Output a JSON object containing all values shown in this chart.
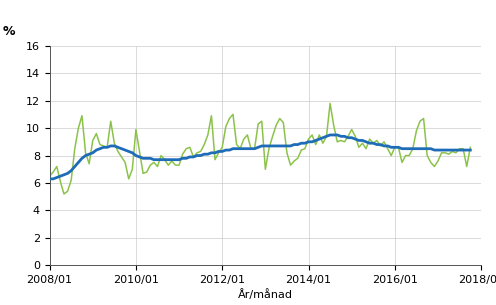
{
  "ylabel_text": "%",
  "xlabel": "År/månad",
  "ylim": [
    0,
    16
  ],
  "yticks": [
    0,
    2,
    4,
    6,
    8,
    10,
    12,
    14,
    16
  ],
  "xtick_labels": [
    "2008/01",
    "2010/01",
    "2012/01",
    "2014/01",
    "2016/01",
    "2018/01"
  ],
  "raw_color": "#8bc34a",
  "trend_color": "#1e6bb8",
  "raw_linewidth": 1.1,
  "trend_linewidth": 2.0,
  "raw_data": [
    6.5,
    6.8,
    7.2,
    6.1,
    5.2,
    5.4,
    6.2,
    8.5,
    10.0,
    10.9,
    8.2,
    7.4,
    9.1,
    9.6,
    8.8,
    8.7,
    8.6,
    10.5,
    8.9,
    8.3,
    7.9,
    7.5,
    6.3,
    7.0,
    9.9,
    8.3,
    6.7,
    6.8,
    7.3,
    7.5,
    7.2,
    8.0,
    7.7,
    7.3,
    7.6,
    7.3,
    7.3,
    8.1,
    8.5,
    8.6,
    7.9,
    8.2,
    8.3,
    8.8,
    9.5,
    10.9,
    7.7,
    8.2,
    8.6,
    10.1,
    10.7,
    11.0,
    8.8,
    8.5,
    9.2,
    9.5,
    8.5,
    8.5,
    10.3,
    10.5,
    7.0,
    8.5,
    9.4,
    10.2,
    10.7,
    10.4,
    8.2,
    7.3,
    7.6,
    7.8,
    8.4,
    8.5,
    9.2,
    9.5,
    8.8,
    9.5,
    8.9,
    9.4,
    11.8,
    10.2,
    9.0,
    9.1,
    9.0,
    9.4,
    9.9,
    9.4,
    8.6,
    8.9,
    8.5,
    9.2,
    8.9,
    9.1,
    8.7,
    9.0,
    8.5,
    8.0,
    8.6,
    8.6,
    7.5,
    8.0,
    8.0,
    8.5,
    9.8,
    10.5,
    10.7,
    8.0,
    7.5,
    7.2,
    7.6,
    8.2,
    8.2,
    8.1,
    8.3,
    8.2,
    8.5,
    8.5,
    7.2,
    8.6
  ],
  "trend_data": [
    6.3,
    6.3,
    6.4,
    6.5,
    6.6,
    6.7,
    6.9,
    7.2,
    7.5,
    7.8,
    8.0,
    8.1,
    8.2,
    8.4,
    8.5,
    8.6,
    8.6,
    8.7,
    8.7,
    8.6,
    8.5,
    8.4,
    8.3,
    8.2,
    8.0,
    7.9,
    7.8,
    7.8,
    7.8,
    7.7,
    7.7,
    7.7,
    7.7,
    7.7,
    7.7,
    7.7,
    7.7,
    7.8,
    7.8,
    7.9,
    7.9,
    8.0,
    8.0,
    8.1,
    8.1,
    8.2,
    8.2,
    8.3,
    8.3,
    8.4,
    8.4,
    8.5,
    8.5,
    8.5,
    8.5,
    8.5,
    8.5,
    8.5,
    8.6,
    8.7,
    8.7,
    8.7,
    8.7,
    8.7,
    8.7,
    8.7,
    8.7,
    8.7,
    8.8,
    8.8,
    8.9,
    8.9,
    9.0,
    9.0,
    9.1,
    9.2,
    9.3,
    9.4,
    9.5,
    9.5,
    9.5,
    9.4,
    9.4,
    9.3,
    9.3,
    9.2,
    9.1,
    9.1,
    9.0,
    8.9,
    8.9,
    8.8,
    8.8,
    8.7,
    8.7,
    8.6,
    8.6,
    8.6,
    8.5,
    8.5,
    8.5,
    8.5,
    8.5,
    8.5,
    8.5,
    8.5,
    8.5,
    8.4,
    8.4,
    8.4,
    8.4,
    8.4,
    8.4,
    8.4,
    8.4,
    8.4,
    8.4,
    8.4
  ],
  "tick_fontsize": 8,
  "label_fontsize": 8,
  "ylabel_fontsize": 9,
  "grid_color": "#cccccc",
  "spine_color": "#555555"
}
